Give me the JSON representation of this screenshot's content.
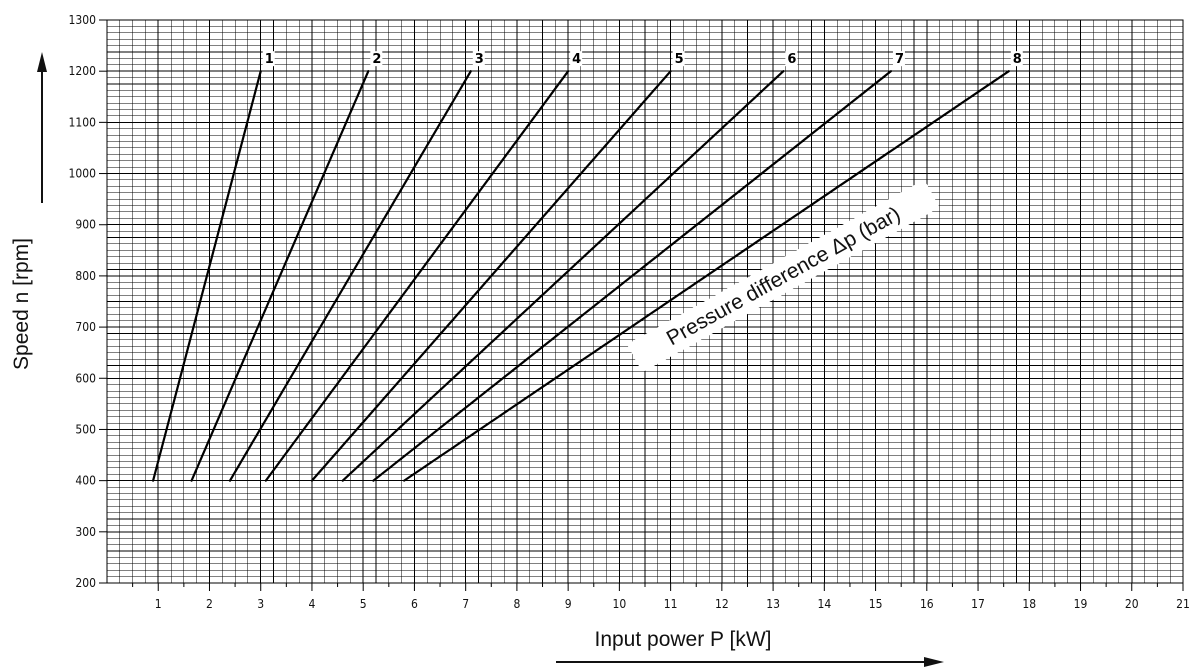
{
  "chart_data": {
    "type": "line",
    "title": "",
    "xlabel": "Input power P [kW]",
    "ylabel": "Speed n [rpm]",
    "xlim": [
      0,
      21
    ],
    "ylim": [
      200,
      1300
    ],
    "x_ticks": [
      "1",
      "2",
      "3",
      "4",
      "5",
      "6",
      "7",
      "8",
      "9",
      "10",
      "11",
      "12",
      "13",
      "14",
      "15",
      "16",
      "17",
      "18",
      "19",
      "20",
      "21"
    ],
    "y_ticks": [
      "200",
      "300",
      "400",
      "500",
      "600",
      "700",
      "800",
      "900",
      "1000",
      "1100",
      "1200",
      "1300"
    ],
    "grid": true,
    "legend": "none",
    "annotation": "Pressure difference Δp (bar)",
    "series": [
      {
        "name": "1",
        "points": [
          [
            0.9,
            400
          ],
          [
            3.0,
            1200
          ]
        ]
      },
      {
        "name": "2",
        "points": [
          [
            1.65,
            400
          ],
          [
            5.1,
            1200
          ]
        ]
      },
      {
        "name": "3",
        "points": [
          [
            2.4,
            400
          ],
          [
            7.1,
            1200
          ]
        ]
      },
      {
        "name": "4",
        "points": [
          [
            3.1,
            400
          ],
          [
            9.0,
            1200
          ]
        ]
      },
      {
        "name": "5",
        "points": [
          [
            4.0,
            400
          ],
          [
            11.0,
            1200
          ]
        ]
      },
      {
        "name": "6",
        "points": [
          [
            4.6,
            400
          ],
          [
            13.2,
            1200
          ]
        ]
      },
      {
        "name": "7",
        "points": [
          [
            5.2,
            400
          ],
          [
            15.3,
            1200
          ]
        ]
      },
      {
        "name": "8",
        "points": [
          [
            5.8,
            400
          ],
          [
            17.6,
            1200
          ]
        ]
      }
    ],
    "colors": {
      "grid": "#000000",
      "line": "#000000",
      "background": "#ffffff"
    }
  }
}
